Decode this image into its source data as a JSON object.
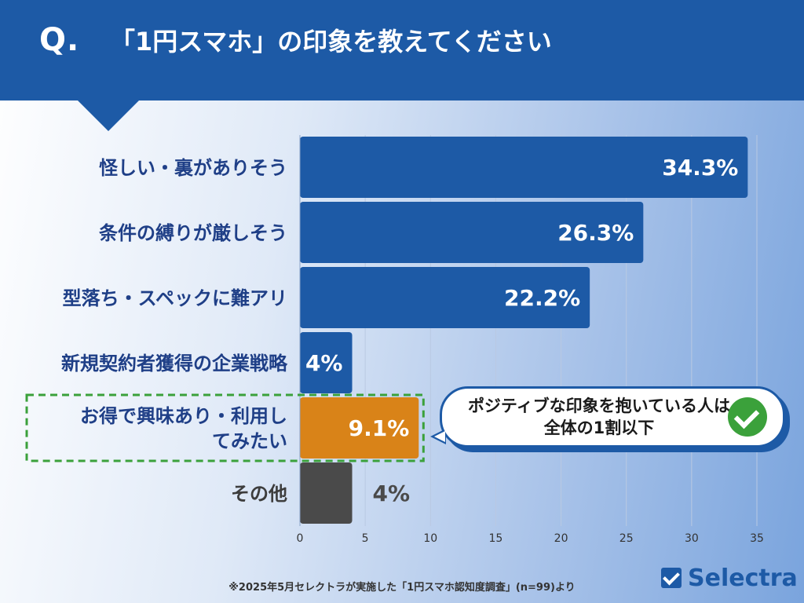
{
  "header": {
    "q_mark": "Q.",
    "title": "「1円スマホ」の印象を教えてください"
  },
  "chart_data": {
    "type": "bar",
    "orientation": "horizontal",
    "categories": [
      [
        "怪しい・裏がありそう"
      ],
      [
        "条件の縛りが厳しそう"
      ],
      [
        "型落ち・スペックに難アリ"
      ],
      [
        "新規契約者獲得の企業戦略"
      ],
      [
        "お得で興味あり・利用し",
        "てみたい"
      ],
      [
        "その他"
      ]
    ],
    "values": [
      34.3,
      26.3,
      22.2,
      4,
      9.1,
      4
    ],
    "value_labels": [
      "34.3%",
      "26.3%",
      "22.2%",
      "4%",
      "9.1%",
      "4%"
    ],
    "colors": [
      "#1d5aa6",
      "#1d5aa6",
      "#1d5aa6",
      "#1d5aa6",
      "#d98318",
      "#4a4a4a"
    ],
    "highlight_index": 4,
    "highlight_color": "#3ba13b",
    "label_outside_index": 5,
    "xlim": [
      0,
      35
    ],
    "xticks": [
      0,
      5,
      10,
      15,
      20,
      25,
      30,
      35
    ],
    "grid": true
  },
  "callout": {
    "text": "ポジティブな印象を抱いている人は全体の1割以下",
    "icon": "check-circle-icon"
  },
  "footnote": "※2025年5月セレクトラが実施した「1円スマホ認知度調査」(n=99)より",
  "brand": {
    "name": "Selectra",
    "color": "#1d5aa6"
  }
}
